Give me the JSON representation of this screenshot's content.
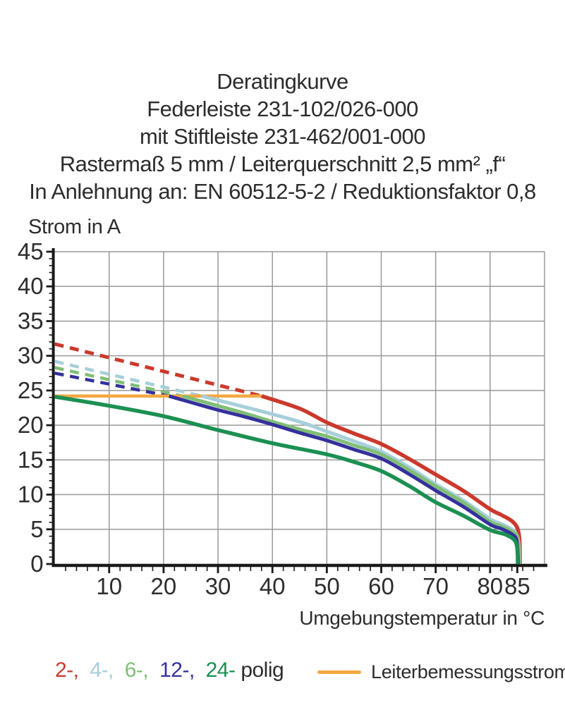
{
  "title": {
    "lines": [
      "Deratingkurve",
      "Federleiste 231-102/026-000",
      "mit Stiftleiste 231-462/001-000",
      "Rastermaß 5 mm / Leiterquerschnitt 2,5 mm² „f“",
      "In Anlehnung an: EN 60512-5-2 / Reduktionsfaktor 0,8"
    ]
  },
  "legend": {
    "poles": [
      {
        "label": "2-,",
        "color": "#cb392c"
      },
      {
        "label": "4-,",
        "color": "#a6cfda"
      },
      {
        "label": "6-,",
        "color": "#80bf75"
      },
      {
        "label": "12-,",
        "color": "#34309c"
      },
      {
        "label": "24-",
        "color": "#1b9052"
      }
    ],
    "poles_suffix": "polig",
    "rated_current_label": "Leiterbemessungsstrom",
    "rated_current_color": "#f4a843"
  },
  "chart_data": {
    "type": "line",
    "title": "Deratingkurve Federleiste 231-102/026-000 mit Stiftleiste 231-462/001-000",
    "xlabel": "Umgebungstemperatur in °C",
    "ylabel": "Strom in A",
    "xlim": [
      0,
      90
    ],
    "ylim": [
      0,
      45
    ],
    "xticks": [
      10,
      20,
      30,
      40,
      50,
      60,
      70,
      80,
      85
    ],
    "yticks": [
      0,
      5,
      10,
      15,
      20,
      25,
      30,
      35,
      40,
      45
    ],
    "x_minor_step": 2,
    "y_minor_step": 1,
    "grid": true,
    "grid_color": "#999999",
    "axis_color": "#1a1a1a",
    "legend_position": "bottom",
    "series": [
      {
        "name": "2-polig-derating-dashed",
        "color": "#cb392c",
        "dash": true,
        "width": 5,
        "points": [
          [
            0,
            31.7
          ],
          [
            38,
            24.2
          ]
        ]
      },
      {
        "name": "4-polig-derating-dashed",
        "color": "#a6cfda",
        "dash": true,
        "width": 4.5,
        "points": [
          [
            0,
            29.2
          ],
          [
            27,
            24.2
          ]
        ]
      },
      {
        "name": "6-polig-derating-dashed",
        "color": "#80bf75",
        "dash": true,
        "width": 4.5,
        "points": [
          [
            0,
            28.3
          ],
          [
            23.5,
            24.2
          ]
        ]
      },
      {
        "name": "12-polig-derating-dashed",
        "color": "#34309c",
        "dash": true,
        "width": 4.5,
        "points": [
          [
            0,
            27.5
          ],
          [
            21,
            24.2
          ]
        ]
      },
      {
        "name": "Leiterbemessungsstrom",
        "color": "#f4a843",
        "dash": false,
        "width": 4.5,
        "points": [
          [
            0,
            24.2
          ],
          [
            38,
            24.2
          ]
        ]
      },
      {
        "name": "2-polig",
        "color": "#cb392c",
        "dash": false,
        "width": 5.5,
        "smooth": true,
        "points": [
          [
            38,
            24.2
          ],
          [
            45,
            22.4
          ],
          [
            50,
            20.4
          ],
          [
            55,
            18.8
          ],
          [
            60,
            17.3
          ],
          [
            65,
            15.2
          ],
          [
            70,
            12.9
          ],
          [
            75,
            10.6
          ],
          [
            80,
            7.9
          ],
          [
            82,
            7.1
          ],
          [
            84,
            6.2
          ],
          [
            85,
            5.2
          ],
          [
            85.4,
            3.5
          ],
          [
            85.5,
            0
          ]
        ]
      },
      {
        "name": "4-polig",
        "color": "#a6cfda",
        "dash": false,
        "width": 5,
        "smooth": true,
        "points": [
          [
            27,
            24.2
          ],
          [
            32,
            23.2
          ],
          [
            38,
            22.0
          ],
          [
            45,
            20.5
          ],
          [
            50,
            19.1
          ],
          [
            55,
            17.7
          ],
          [
            60,
            16.2
          ],
          [
            65,
            14.0
          ],
          [
            70,
            11.5
          ],
          [
            75,
            9.2
          ],
          [
            80,
            6.5
          ],
          [
            82,
            5.8
          ],
          [
            84,
            5.0
          ],
          [
            85,
            4.0
          ],
          [
            85.3,
            2.5
          ],
          [
            85.4,
            0
          ]
        ]
      },
      {
        "name": "6-polig",
        "color": "#80bf75",
        "dash": false,
        "width": 5,
        "smooth": true,
        "points": [
          [
            23.5,
            24.2
          ],
          [
            30,
            22.8
          ],
          [
            35,
            21.7
          ],
          [
            40,
            20.5
          ],
          [
            45,
            19.4
          ],
          [
            50,
            18.4
          ],
          [
            55,
            17.1
          ],
          [
            60,
            15.8
          ],
          [
            65,
            13.6
          ],
          [
            70,
            11.2
          ],
          [
            75,
            8.9
          ],
          [
            80,
            6.1
          ],
          [
            82,
            5.5
          ],
          [
            84,
            4.7
          ],
          [
            85,
            3.7
          ],
          [
            85.3,
            0
          ]
        ]
      },
      {
        "name": "12-polig",
        "color": "#34309c",
        "dash": false,
        "width": 5,
        "smooth": true,
        "points": [
          [
            21,
            24.2
          ],
          [
            25,
            23.3
          ],
          [
            30,
            22.2
          ],
          [
            35,
            21.2
          ],
          [
            40,
            20.1
          ],
          [
            45,
            18.9
          ],
          [
            50,
            17.8
          ],
          [
            55,
            16.5
          ],
          [
            60,
            15.2
          ],
          [
            65,
            13.0
          ],
          [
            70,
            10.6
          ],
          [
            75,
            8.3
          ],
          [
            80,
            5.7
          ],
          [
            82,
            5.1
          ],
          [
            84,
            4.3
          ],
          [
            84.9,
            3.3
          ],
          [
            85.2,
            0
          ]
        ]
      },
      {
        "name": "24-polig",
        "color": "#1b9052",
        "dash": false,
        "width": 5.5,
        "smooth": true,
        "points": [
          [
            0,
            24.1
          ],
          [
            10,
            22.8
          ],
          [
            20,
            21.3
          ],
          [
            30,
            19.3
          ],
          [
            40,
            17.4
          ],
          [
            50,
            15.8
          ],
          [
            55,
            14.7
          ],
          [
            60,
            13.4
          ],
          [
            65,
            11.3
          ],
          [
            70,
            8.9
          ],
          [
            75,
            7.0
          ],
          [
            80,
            4.9
          ],
          [
            83,
            4.2
          ],
          [
            84.8,
            3.0
          ],
          [
            85.1,
            0
          ]
        ]
      }
    ]
  }
}
